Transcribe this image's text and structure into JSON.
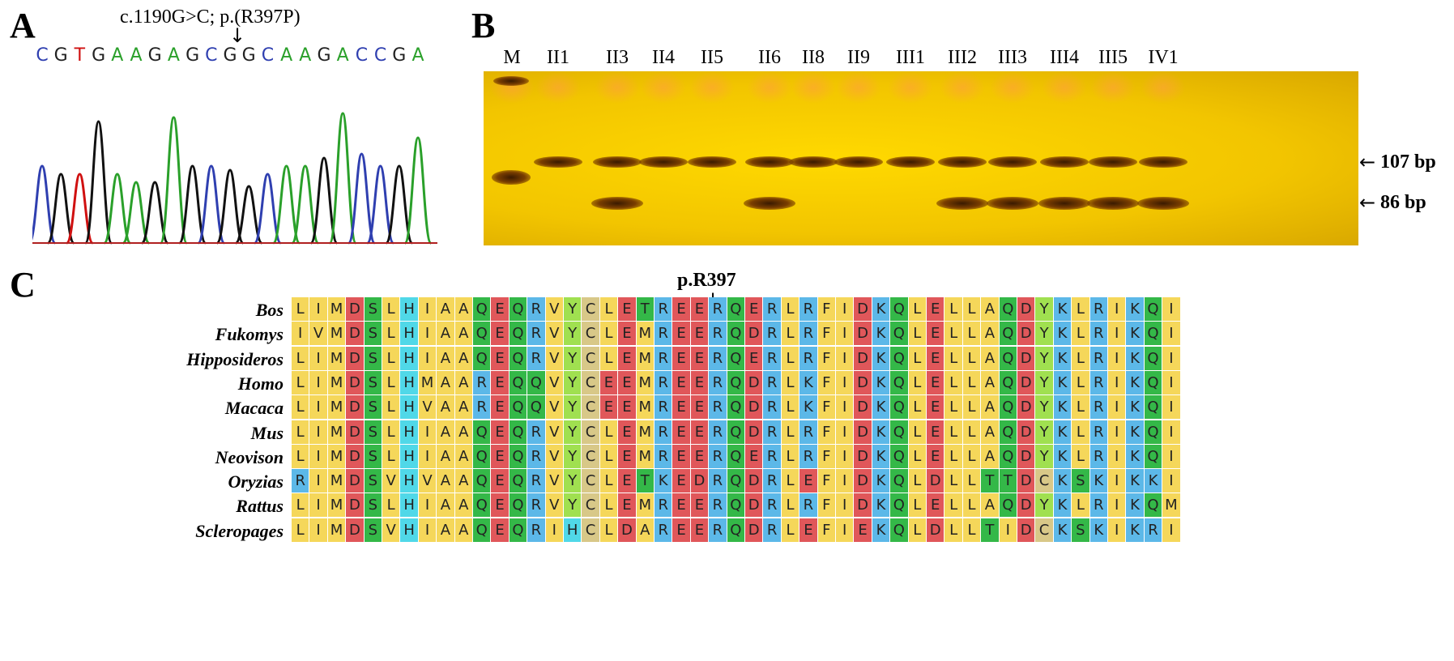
{
  "panelA": {
    "letter": "A",
    "mutation_label": "c.1190G>C; p.(R397P)",
    "sequence": [
      {
        "base": "C",
        "color": "#2f3fb0"
      },
      {
        "base": "G",
        "color": "#222222"
      },
      {
        "base": "T",
        "color": "#d01010"
      },
      {
        "base": "G",
        "color": "#222222"
      },
      {
        "base": "A",
        "color": "#2aa02a"
      },
      {
        "base": "A",
        "color": "#2aa02a"
      },
      {
        "base": "G",
        "color": "#222222"
      },
      {
        "base": "A",
        "color": "#2aa02a"
      },
      {
        "base": "G",
        "color": "#222222"
      },
      {
        "base": "C",
        "color": "#2f3fb0"
      },
      {
        "base": "G",
        "color": "#222222"
      },
      {
        "base": "G",
        "color": "#222222"
      },
      {
        "base": "C",
        "color": "#2f3fb0"
      },
      {
        "base": "A",
        "color": "#2aa02a"
      },
      {
        "base": "A",
        "color": "#2aa02a"
      },
      {
        "base": "G",
        "color": "#222222"
      },
      {
        "base": "A",
        "color": "#2aa02a"
      },
      {
        "base": "C",
        "color": "#2f3fb0"
      },
      {
        "base": "C",
        "color": "#2f3fb0"
      },
      {
        "base": "G",
        "color": "#222222"
      },
      {
        "base": "A",
        "color": "#2aa02a"
      }
    ]
  },
  "panelB": {
    "letter": "B",
    "lanes": [
      "M",
      "II1",
      "II3",
      "II4",
      "II5",
      "II6",
      "II8",
      "II9",
      "III1",
      "III2",
      "III3",
      "III4",
      "III5",
      "IV1"
    ],
    "band_107": [
      false,
      true,
      true,
      true,
      true,
      true,
      true,
      true,
      true,
      true,
      true,
      true,
      true,
      true
    ],
    "band_86": [
      false,
      false,
      true,
      false,
      false,
      true,
      false,
      false,
      false,
      true,
      true,
      true,
      true,
      true
    ],
    "size_labels": [
      "107 bp",
      "86 bp"
    ]
  },
  "panelC": {
    "letter": "C",
    "residue_label": "p.R397",
    "species": [
      "Bos",
      "Fukomys",
      "Hipposideros",
      "Homo",
      "Macaca",
      "Mus",
      "Neovison",
      "Oryzias",
      "Rattus",
      "Scleropages"
    ],
    "sequences": [
      "LIMDSLHIAAQEQRVYCLETREERQERLRFIDKQLELLAQDYKLRIKQI",
      "IVMDSLHIAAQEQRVYCLEMREERQDRLRFIDKQLELLAQDYKLRIKQI",
      "LIMDSLHIAAQEQRVYCLEMREERQERLRFIDKQLELLAQDYKLRIKQI",
      "LIMDSLHMAAREQQVYCEEMREERQDRLKFIDKQLELLAQDYKLRIKQI",
      "LIMDSLHVAAREQQVYCEEMREERQDRLKFIDKQLELLAQDYKLRIKQI",
      "LIMDSLHIAAQEQRVYCLEMREERQDRLRFIDKQLELLAQDYKLRIKQI",
      "LIMDSLHIAAQEQRVYCLEMREERQERLRFIDKQLELLAQDYKLRIKQI",
      "RIMDSVHVAAQEQRVYCLETKEDRQDRLEFIDKQLDLLTTDCKSKIKKI",
      "LIMDSLHIAAQEQRVYCLEMREERQDRLRFIDKQLELLAQDYKLRIKQM",
      "LIMDSVHIAAQEQRIHCLDAREERQDRLEFIEKQLDLLTIDCKSKIKRI"
    ],
    "residue_colors": {
      "L": "#f5d75a",
      "I": "#f5d75a",
      "M": "#f5d75a",
      "V": "#f5d75a",
      "A": "#f5d75a",
      "F": "#f5d75a",
      "D": "#e0575a",
      "E": "#e0575a",
      "S": "#34b848",
      "T": "#34b848",
      "Q": "#34b848",
      "N": "#34b848",
      "R": "#5cb8e8",
      "K": "#5cb8e8",
      "H": "#50d8e8",
      "Y": "#a0e050",
      "C": "#d8c888",
      "W": "#a0e050",
      "G": "#f0a040",
      "P": "#e8e060"
    }
  }
}
